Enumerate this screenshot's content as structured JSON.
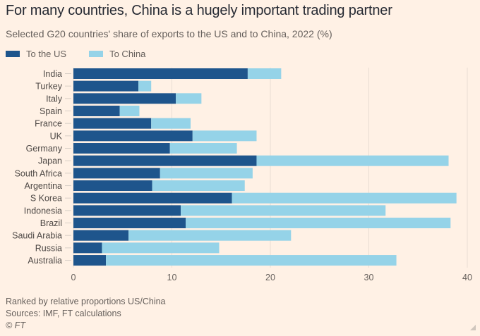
{
  "chart_data": {
    "type": "bar",
    "orientation": "horizontal",
    "stacked": true,
    "title": "For many countries, China is a hugely important trading partner",
    "subtitle": "Selected G20 countries' share of exports to the US and to China, 2022 (%)",
    "xlabel": "",
    "ylabel": "",
    "xlim": [
      0,
      40
    ],
    "xticks": [
      0,
      10,
      20,
      30,
      40
    ],
    "grid": true,
    "legend_position": "top-left",
    "categories": [
      "India",
      "Turkey",
      "Italy",
      "Spain",
      "France",
      "UK",
      "Germany",
      "Japan",
      "South Africa",
      "Argentina",
      "S Korea",
      "Indonesia",
      "Brazil",
      "Saudi Arabia",
      "Russia",
      "Australia"
    ],
    "series": [
      {
        "name": "To the US",
        "color": "#1e558c",
        "values": [
          17.7,
          6.6,
          10.4,
          4.7,
          7.9,
          12.1,
          9.8,
          18.6,
          8.8,
          8.0,
          16.1,
          10.9,
          11.4,
          5.6,
          2.9,
          3.3
        ]
      },
      {
        "name": "To China",
        "color": "#95d3e8",
        "values": [
          3.4,
          1.3,
          2.6,
          2.0,
          4.0,
          6.5,
          6.8,
          19.5,
          9.4,
          9.4,
          22.8,
          20.8,
          26.9,
          16.5,
          11.9,
          29.5
        ]
      }
    ]
  },
  "footer": {
    "note": "Ranked by relative proportions US/China",
    "sources": "Sources: IMF, FT calculations",
    "copyright": "© FT"
  }
}
